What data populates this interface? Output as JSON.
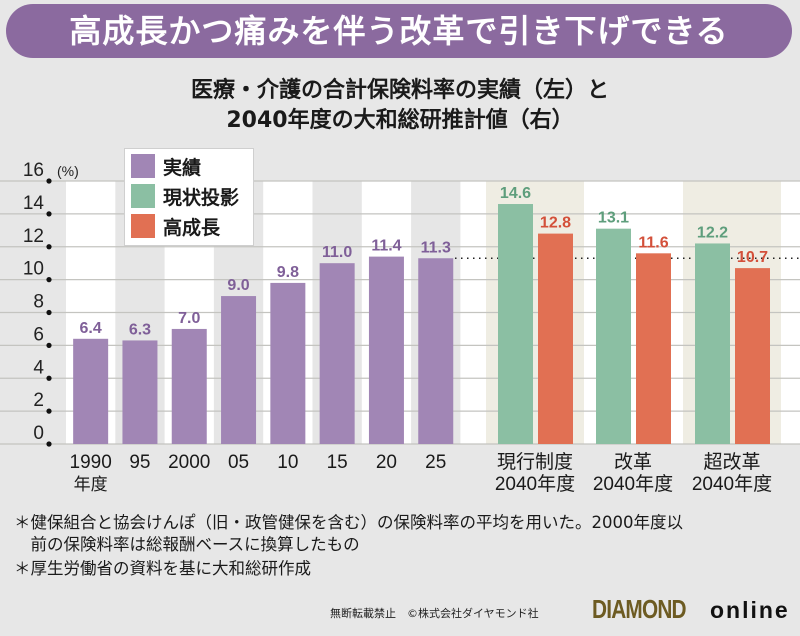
{
  "banner": {
    "title": "高成長かつ痛みを伴う改革で引き下げできる"
  },
  "chart_data": {
    "type": "bar",
    "title_line1": "医療・介護の合計保険料率の実績（左）と",
    "title_line2": "2040年度の大和総研推計値（右）",
    "ylabel": "(%)",
    "ylim": [
      0,
      16
    ],
    "yticks": [
      0,
      2,
      4,
      6,
      8,
      10,
      12,
      14,
      16
    ],
    "grid": true,
    "legend_position": "top-left",
    "legend": [
      {
        "name": "実績",
        "color": "#a186b5"
      },
      {
        "name": "現状投影",
        "color": "#8bbfa3"
      },
      {
        "name": "高成長",
        "color": "#e17053"
      }
    ],
    "actual": {
      "series_name": "実績",
      "categories": [
        "1990",
        "95",
        "2000",
        "05",
        "10",
        "15",
        "20",
        "25"
      ],
      "first_category_suffix": "年度",
      "values": [
        6.4,
        6.3,
        7.0,
        9.0,
        9.8,
        11.0,
        11.4,
        11.3
      ],
      "value_labels": [
        "6.4",
        "6.3",
        "7.0",
        "9.0",
        "9.8",
        "11.0",
        "11.4",
        "11.3"
      ]
    },
    "projection": {
      "categories": [
        {
          "line1": "現行制度",
          "line2": "2040年度"
        },
        {
          "line1": "改革",
          "line2": "2040年度"
        },
        {
          "line1": "超改革",
          "line2": "2040年度"
        }
      ],
      "series": [
        {
          "name": "現状投影",
          "values": [
            14.6,
            13.1,
            12.2
          ],
          "value_labels": [
            "14.6",
            "13.1",
            "12.2"
          ]
        },
        {
          "name": "高成長",
          "values": [
            12.8,
            11.6,
            10.7
          ],
          "value_labels": [
            "12.8",
            "11.6",
            "10.7"
          ]
        }
      ]
    },
    "reference_line": {
      "value": 11.3,
      "style": "dotted"
    }
  },
  "notes": [
    "＊健保組合と協会けんぽ（旧・政管健保を含む）の保険料率の平均を用いた。2000年度以",
    "　前の保険料率は総報酬ベースに換算したもの",
    "＊厚生労働省の資料を基に大和総研作成"
  ],
  "footer": {
    "copyright": "無断転載禁止　©株式会社ダイヤモンド社",
    "logo_main": "DIAMOND",
    "logo_sub": "online"
  },
  "colors": {
    "banner": "#8b6a9f",
    "actual": "#a186b5",
    "status_quo": "#8bbfa3",
    "high_growth": "#e17053",
    "actual_label": "#7f5f98",
    "status_quo_label": "#5e9e7c",
    "high_growth_label": "#d3503a"
  }
}
